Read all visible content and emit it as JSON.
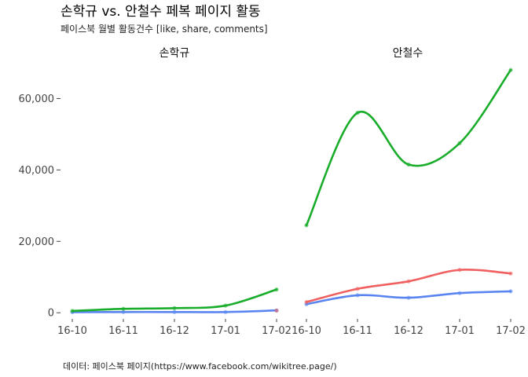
{
  "chart_data": {
    "type": "line",
    "title": "손학규 vs. 안철수 페복 페이지 활동",
    "subtitle": "페이스북 월별 활동건수 [like, share, comments]",
    "caption": "데이터: 페이스북 페이지(https://www.facebook.com/wikitree.page/)",
    "categories": [
      "16-10",
      "16-11",
      "16-12",
      "17-01",
      "17-02"
    ],
    "ylim": [
      -1500,
      70000
    ],
    "yticks": [
      0,
      20000,
      40000,
      60000
    ],
    "ytick_labels": [
      "0",
      "20,000",
      "40,000",
      "60,000"
    ],
    "grid": false,
    "colors": {
      "like": "#1aad2b",
      "share": "#f06060",
      "comments": "#5a85f0"
    },
    "panels": [
      {
        "label": "손학규",
        "series": [
          {
            "key": "like",
            "values": [
              500,
              1100,
              1300,
              2000,
              6500
            ]
          },
          {
            "key": "share",
            "values": [
              null,
              null,
              null,
              null,
              600
            ]
          },
          {
            "key": "comments",
            "values": [
              150,
              200,
              200,
              200,
              650
            ]
          }
        ]
      },
      {
        "label": "안철수",
        "series": [
          {
            "key": "like",
            "values": [
              24500,
              56000,
              41500,
              47500,
              68000
            ]
          },
          {
            "key": "share",
            "values": [
              3000,
              6700,
              8800,
              12000,
              11000
            ]
          },
          {
            "key": "comments",
            "values": [
              2400,
              4900,
              4200,
              5500,
              6000
            ]
          }
        ]
      }
    ]
  }
}
